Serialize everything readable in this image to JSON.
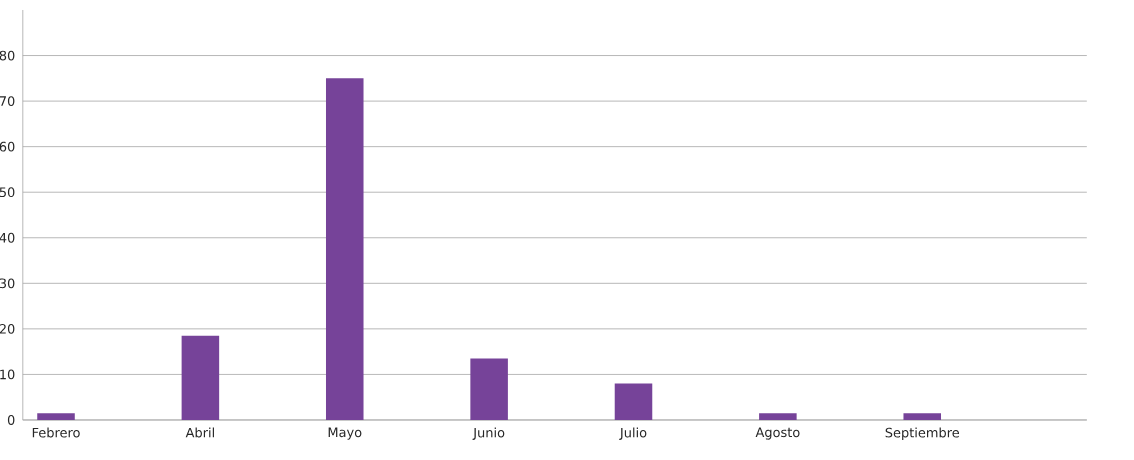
{
  "chart_data": {
    "type": "bar",
    "categories": [
      "Febrero",
      "Abril",
      "Mayo",
      "Junio",
      "Julio",
      "Agosto",
      "Septiembre"
    ],
    "values": [
      1.5,
      18.5,
      75,
      13.5,
      8,
      1.5,
      1.5
    ],
    "color": "#764399",
    "ylim": [
      0,
      90
    ],
    "yticks": [
      0,
      10,
      20,
      30,
      40,
      50,
      60,
      70,
      80
    ],
    "grid": "y"
  }
}
